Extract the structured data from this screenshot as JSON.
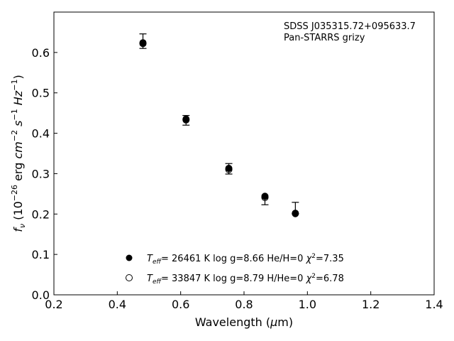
{
  "chart_data": {
    "type": "scatter",
    "annotation": [
      "SDSS J035315.72+095633.7",
      "Pan-STARRS grizy"
    ],
    "xlabel": "Wavelength (μm)",
    "ylabel": "f_ν (10^−26 erg cm^−2 s^−1 Hz^−1)",
    "xlim": [
      0.2,
      1.4
    ],
    "ylim": [
      0.0,
      0.7
    ],
    "xticks": [
      "0.2",
      "0.4",
      "0.6",
      "0.8",
      "1.0",
      "1.2",
      "1.4"
    ],
    "yticks": [
      "0.0",
      "0.1",
      "0.2",
      "0.3",
      "0.4",
      "0.5",
      "0.6"
    ],
    "grid": false,
    "legend_position": "bottom-center",
    "observed": {
      "x": [
        0.481,
        0.617,
        0.752,
        0.866,
        0.962
      ],
      "y": [
        0.628,
        0.432,
        0.312,
        0.232,
        0.215
      ],
      "err": [
        0.018,
        0.012,
        0.013,
        0.009,
        0.014
      ]
    },
    "series": [
      {
        "name": "T_eff= 26461 K  log g=8.66  He/H=0  χ²=7.35",
        "marker": "filled",
        "x": [
          0.481,
          0.617,
          0.752,
          0.866,
          0.962
        ],
        "y": [
          0.624,
          0.435,
          0.313,
          0.244,
          0.202
        ]
      },
      {
        "name": "T_eff= 33847 K  log g=8.79  H/He=0  χ²=6.78",
        "marker": "open",
        "x": [
          0.481,
          0.617,
          0.752,
          0.866,
          0.962
        ],
        "y": [
          0.622,
          0.433,
          0.31,
          0.241,
          0.201
        ]
      }
    ],
    "legend": [
      {
        "teff_value": "= 26461 K  log g=8.66  He/H=0",
        "chi_value": "=7.35"
      },
      {
        "teff_value": "= 33847 K  log g=8.79  H/He=0",
        "chi_value": "=6.78"
      }
    ]
  }
}
